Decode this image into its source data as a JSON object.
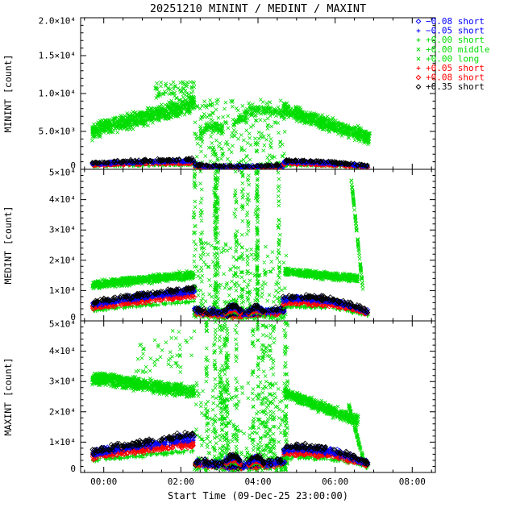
{
  "chart_data": {
    "type": "scatter",
    "title": "20251210 MININT / MEDINT / MAXINT",
    "xlabel": "Start Time (09-Dec-25 23:00:00)",
    "legend_position": "top-right",
    "background": "#ffffff",
    "axis_color": "#000000",
    "x": {
      "lim": [
        -0.6,
        8.6
      ],
      "minor": 0.5,
      "ticks": [
        {
          "v": 0,
          "t": "00:00"
        },
        {
          "v": 2,
          "t": "02:00"
        },
        {
          "v": 4,
          "t": "04:00"
        },
        {
          "v": 6,
          "t": "06:00"
        },
        {
          "v": 8,
          "t": "08:00"
        }
      ]
    },
    "series": [
      {
        "id": "m008s",
        "label": "−0.08 short",
        "color": "#0000ff",
        "symbol": "diamond"
      },
      {
        "id": "m005s",
        "label": "−0.05 short",
        "color": "#0000ff",
        "symbol": "plus"
      },
      {
        "id": "p000s",
        "label": "+0.00 short",
        "color": "#00dd00",
        "symbol": "plus"
      },
      {
        "id": "p000m",
        "label": "+0.00 middle",
        "color": "#00dd00",
        "symbol": "x"
      },
      {
        "id": "p000l",
        "label": "+0.00 long",
        "color": "#00dd00",
        "symbol": "x"
      },
      {
        "id": "p005s",
        "label": "+0.05 short",
        "color": "#ff0000",
        "symbol": "plus"
      },
      {
        "id": "p008s",
        "label": "+0.08 short",
        "color": "#ff0000",
        "symbol": "diamond"
      },
      {
        "id": "p035s",
        "label": "+0.35 short",
        "color": "#000000",
        "symbol": "diamond"
      }
    ],
    "panels": [
      {
        "name": "MININT",
        "ylabel": "MININT [count]",
        "ylim": [
          0,
          20000
        ],
        "yminor": 1000,
        "yticks": [
          {
            "v": 0,
            "t": "0"
          },
          {
            "v": 5000,
            "t": "5.0×10³"
          },
          {
            "v": 10000,
            "t": "1.0×10⁴"
          },
          {
            "v": 15000,
            "t": "1.5×10⁴"
          },
          {
            "v": 20000,
            "t": "2.0×10⁴"
          }
        ],
        "clusters": [
          {
            "s": "p000m",
            "shape": "lin",
            "t": [
              -0.3,
              2.35
            ],
            "y": [
              4800,
              8300
            ],
            "sy": 900,
            "n": 420
          },
          {
            "s": "p000l",
            "shape": "lin",
            "t": [
              -0.3,
              2.35
            ],
            "y": [
              5400,
              9100
            ],
            "sy": 800,
            "n": 320
          },
          {
            "s": "p000l",
            "shape": "uni",
            "t": [
              1.3,
              2.35
            ],
            "y": [
              9300,
              11600
            ],
            "n": 70
          },
          {
            "s": "p000m",
            "shape": "uni",
            "t": [
              2.35,
              4.7
            ],
            "y": [
              300,
              9200
            ],
            "n": 240
          },
          {
            "s": "p000l",
            "shape": "arc",
            "t": [
              2.5,
              3.1
            ],
            "y": [
              4500,
              6600,
              5000
            ],
            "sy": 900,
            "n": 80
          },
          {
            "s": "p000l",
            "shape": "arc",
            "t": [
              3.35,
              4.65
            ],
            "y": [
              6000,
              8900,
              7400
            ],
            "sy": 700,
            "n": 130
          },
          {
            "s": "p000m",
            "shape": "lin",
            "t": [
              4.65,
              6.9
            ],
            "y": [
              7700,
              3900
            ],
            "sy": 750,
            "n": 380
          },
          {
            "s": "p000l",
            "shape": "lin",
            "t": [
              4.65,
              6.9
            ],
            "y": [
              8300,
              4500
            ],
            "sy": 650,
            "n": 260
          },
          {
            "s": [
              "p000s",
              "p008s",
              "p005s",
              "m005s",
              "m008s",
              "p035s"
            ],
            "b": [
              620,
              850,
              950,
              1050,
              1150,
              1300
            ],
            "shape": "arc",
            "t": [
              -0.3,
              2.35
            ],
            "y": [
              0.65,
              0.9,
              1.0
            ],
            "sy": 0.16,
            "n": 110
          },
          {
            "s": [
              "p000s",
              "p008s",
              "p005s",
              "m005s",
              "m008s",
              "p035s"
            ],
            "b": [
              620,
              850,
              950,
              1050,
              1150,
              1300
            ],
            "shape": "arc",
            "t": [
              2.35,
              4.7
            ],
            "y": [
              0.45,
              0.15,
              0.45
            ],
            "sy": 0.15,
            "n": 80
          },
          {
            "s": [
              "p000s",
              "p008s",
              "p005s",
              "m005s",
              "m008s",
              "p035s"
            ],
            "b": [
              620,
              850,
              950,
              1050,
              1150,
              1300
            ],
            "shape": "arc",
            "t": [
              4.65,
              6.85
            ],
            "y": [
              0.85,
              0.9,
              0.35
            ],
            "sy": 0.15,
            "n": 100
          }
        ]
      },
      {
        "name": "MEDINT",
        "ylabel": "MEDINT [count]",
        "ylim": [
          0,
          50000
        ],
        "yminor": 2000,
        "yticks": [
          {
            "v": 0,
            "t": "0"
          },
          {
            "v": 10000,
            "t": "1×10⁴"
          },
          {
            "v": 20000,
            "t": "2×10⁴"
          },
          {
            "v": 30000,
            "t": "3×10⁴"
          },
          {
            "v": 40000,
            "t": "4×10⁴"
          },
          {
            "v": 50000,
            "t": "5×10⁴"
          }
        ],
        "clusters": [
          {
            "s": "p000m",
            "shape": "lin",
            "t": [
              -0.3,
              2.35
            ],
            "y": [
              11500,
              14800
            ],
            "sy": 1100,
            "n": 420
          },
          {
            "s": "p000l",
            "shape": "lin",
            "t": [
              -0.3,
              2.35
            ],
            "y": [
              12500,
              15800
            ],
            "sy": 900,
            "n": 300
          },
          {
            "s": "p000m",
            "shape": "col",
            "t": [
              2.3,
              4.75
            ],
            "y": [
              1500,
              50000
            ],
            "n": 430
          },
          {
            "s": "p000l",
            "shape": "uni",
            "t": [
              2.35,
              4.75
            ],
            "y": [
              800,
              26000
            ],
            "n": 190
          },
          {
            "s": "p000m",
            "shape": "uni",
            "t": [
              2.35,
              4.75
            ],
            "y": [
              500,
              4200
            ],
            "n": 150
          },
          {
            "s": "p000m",
            "shape": "lin",
            "t": [
              4.7,
              6.6
            ],
            "y": [
              15800,
              13600
            ],
            "sy": 1000,
            "n": 300
          },
          {
            "s": "p000l",
            "shape": "lin",
            "t": [
              4.7,
              6.6
            ],
            "y": [
              16800,
              14500
            ],
            "sy": 800,
            "n": 200
          },
          {
            "s": "p000l",
            "shape": "lin",
            "t": [
              6.42,
              6.72
            ],
            "y": [
              46500,
              10500
            ],
            "sy": 600,
            "n": 90
          },
          {
            "s": [
              "p000s",
              "p008s",
              "p005s",
              "m005s",
              "m008s",
              "p035s"
            ],
            "b": [
              6400,
              8100,
              8800,
              9600,
              10200,
              10900
            ],
            "shape": "arc",
            "t": [
              -0.3,
              2.35
            ],
            "y": [
              0.55,
              0.82,
              1.0
            ],
            "sy": 0.09,
            "n": 130
          },
          {
            "s": [
              "p000s",
              "p008s",
              "p005s",
              "m005s",
              "m008s",
              "p035s"
            ],
            "b": [
              6400,
              8100,
              8800,
              9600,
              10200,
              10900
            ],
            "shape": "arc",
            "t": [
              2.35,
              4.7
            ],
            "y": [
              0.35,
              0.12,
              0.38
            ],
            "sy": 0.12,
            "n": 90
          },
          {
            "s": [
              "p000s",
              "p008s",
              "p005s",
              "m005s",
              "m008s",
              "p035s"
            ],
            "b": [
              6400,
              8100,
              8800,
              9600,
              10200,
              10900
            ],
            "shape": "arc",
            "t": [
              3.15,
              3.55
            ],
            "y": [
              0.3,
              0.62,
              0.3
            ],
            "sy": 0.07,
            "n": 28
          },
          {
            "s": [
              "p000s",
              "p008s",
              "p005s",
              "m005s",
              "m008s",
              "p035s"
            ],
            "b": [
              6400,
              8100,
              8800,
              9600,
              10200,
              10900
            ],
            "shape": "arc",
            "t": [
              3.75,
              4.15
            ],
            "y": [
              0.28,
              0.58,
              0.28
            ],
            "sy": 0.07,
            "n": 28
          },
          {
            "s": [
              "p000s",
              "p008s",
              "p005s",
              "m005s",
              "m008s",
              "p035s"
            ],
            "b": [
              6400,
              8100,
              8800,
              9600,
              10200,
              10900
            ],
            "shape": "arc",
            "t": [
              4.65,
              6.85
            ],
            "y": [
              0.7,
              0.85,
              0.3
            ],
            "sy": 0.09,
            "n": 110
          }
        ]
      },
      {
        "name": "MAXINT",
        "ylabel": "MAXINT [count]",
        "ylim": [
          0,
          50000
        ],
        "yminor": 2000,
        "yticks": [
          {
            "v": 0,
            "t": "0"
          },
          {
            "v": 10000,
            "t": "1×10⁴"
          },
          {
            "v": 20000,
            "t": "2×10⁴"
          },
          {
            "v": 30000,
            "t": "3×10⁴"
          },
          {
            "v": 40000,
            "t": "4×10⁴"
          },
          {
            "v": 50000,
            "t": "5×10⁴"
          }
        ],
        "clusters": [
          {
            "s": "p000m",
            "shape": "lin",
            "t": [
              -0.3,
              2.35
            ],
            "y": [
              30500,
              26000
            ],
            "sy": 1800,
            "n": 420
          },
          {
            "s": "p000l",
            "shape": "lin",
            "t": [
              -0.3,
              2.35
            ],
            "y": [
              32000,
              27500
            ],
            "sy": 1500,
            "n": 300
          },
          {
            "s": "p000l",
            "shape": "arc",
            "t": [
              -0.3,
              0.45
            ],
            "y": [
              30500,
              33500,
              30000
            ],
            "sy": 1400,
            "n": 80
          },
          {
            "s": "p000l",
            "shape": "uni",
            "t": [
              0.8,
              2.35
            ],
            "y": [
              33000,
              47000
            ],
            "n": 50
          },
          {
            "s": "p000m",
            "shape": "col",
            "t": [
              2.3,
              4.75
            ],
            "y": [
              1500,
              50000
            ],
            "n": 500
          },
          {
            "s": "p000l",
            "shape": "uni",
            "t": [
              2.35,
              4.75
            ],
            "y": [
              800,
              30000
            ],
            "n": 200
          },
          {
            "s": "p000m",
            "shape": "uni",
            "t": [
              2.35,
              4.75
            ],
            "y": [
              500,
              5200
            ],
            "n": 150
          },
          {
            "s": "p000m",
            "shape": "lin",
            "t": [
              4.7,
              6.6
            ],
            "y": [
              25500,
              16500
            ],
            "sy": 1500,
            "n": 320
          },
          {
            "s": "p000l",
            "shape": "lin",
            "t": [
              4.7,
              6.6
            ],
            "y": [
              26800,
              18000
            ],
            "sy": 1200,
            "n": 220
          },
          {
            "s": "p000l",
            "shape": "lin",
            "t": [
              6.35,
              6.75
            ],
            "y": [
              22500,
              3500
            ],
            "sy": 600,
            "n": 80
          },
          {
            "s": [
              "p000s",
              "p008s",
              "p005s",
              "m005s",
              "m008s",
              "p035s"
            ],
            "b": [
              7200,
              9200,
              10000,
              11000,
              11800,
              12600
            ],
            "shape": "arc",
            "t": [
              -0.3,
              2.35
            ],
            "y": [
              0.55,
              0.8,
              1.0
            ],
            "sy": 0.1,
            "n": 130
          },
          {
            "s": [
              "p000s",
              "p008s",
              "p005s",
              "m005s",
              "m008s",
              "p035s"
            ],
            "b": [
              7200,
              9200,
              10000,
              11000,
              11800,
              12600
            ],
            "shape": "arc",
            "t": [
              2.35,
              4.7
            ],
            "y": [
              0.3,
              0.1,
              0.35
            ],
            "sy": 0.12,
            "n": 90
          },
          {
            "s": [
              "p000s",
              "p008s",
              "p005s",
              "m005s",
              "m008s",
              "p035s"
            ],
            "b": [
              7200,
              9200,
              10000,
              11000,
              11800,
              12600
            ],
            "shape": "arc",
            "t": [
              3.15,
              3.55
            ],
            "y": [
              0.3,
              0.6,
              0.3
            ],
            "sy": 0.07,
            "n": 28
          },
          {
            "s": [
              "p000s",
              "p008s",
              "p005s",
              "m005s",
              "m008s",
              "p035s"
            ],
            "b": [
              7200,
              9200,
              10000,
              11000,
              11800,
              12600
            ],
            "shape": "arc",
            "t": [
              3.75,
              4.15
            ],
            "y": [
              0.25,
              0.55,
              0.25
            ],
            "sy": 0.07,
            "n": 28
          },
          {
            "s": [
              "p000s",
              "p008s",
              "p005s",
              "m005s",
              "m008s",
              "p035s"
            ],
            "b": [
              7200,
              9200,
              10000,
              11000,
              11800,
              12600
            ],
            "shape": "arc",
            "t": [
              4.65,
              6.85
            ],
            "y": [
              0.65,
              0.8,
              0.25
            ],
            "sy": 0.1,
            "n": 110
          }
        ]
      }
    ]
  }
}
